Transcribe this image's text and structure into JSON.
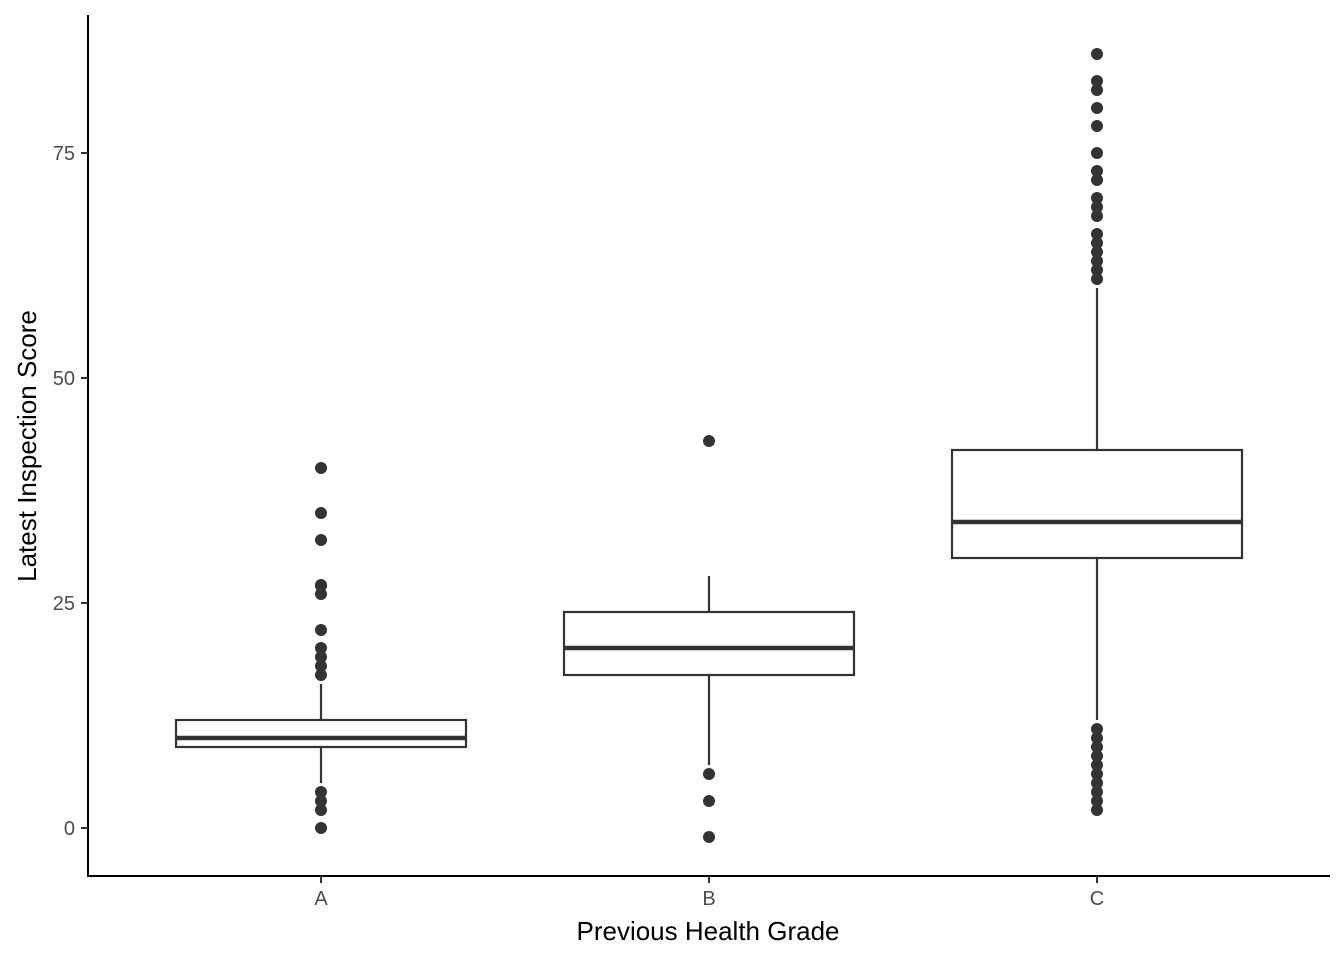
{
  "chart_data": {
    "type": "boxplot",
    "xlabel": "Previous Health Grade",
    "ylabel": "Latest Inspection Score",
    "categories": [
      "A",
      "B",
      "C"
    ],
    "ylim": [
      -5.2,
      90
    ],
    "yticks": [
      0,
      25,
      50,
      75
    ],
    "grid": false,
    "boxes": [
      {
        "category": "A",
        "whisker_low": 5,
        "q1": 9,
        "median": 10,
        "q3": 12,
        "whisker_high": 16,
        "outliers": [
          40,
          35,
          32,
          27,
          26.9,
          26,
          22,
          20,
          19,
          18,
          17,
          4,
          3,
          2,
          0
        ]
      },
      {
        "category": "B",
        "whisker_low": 7,
        "q1": 17,
        "median": 20,
        "q3": 24,
        "whisker_high": 28,
        "outliers": [
          43,
          6,
          3,
          -1
        ]
      },
      {
        "category": "C",
        "whisker_low": 12,
        "q1": 30,
        "median": 34,
        "q3": 42,
        "whisker_high": 60,
        "outliers": [
          86,
          83,
          82,
          80,
          78,
          75,
          73,
          72,
          70,
          69,
          68,
          66,
          65,
          64,
          63,
          62,
          61,
          11,
          10,
          9,
          8,
          7,
          6,
          5,
          4,
          3,
          2
        ]
      }
    ]
  }
}
